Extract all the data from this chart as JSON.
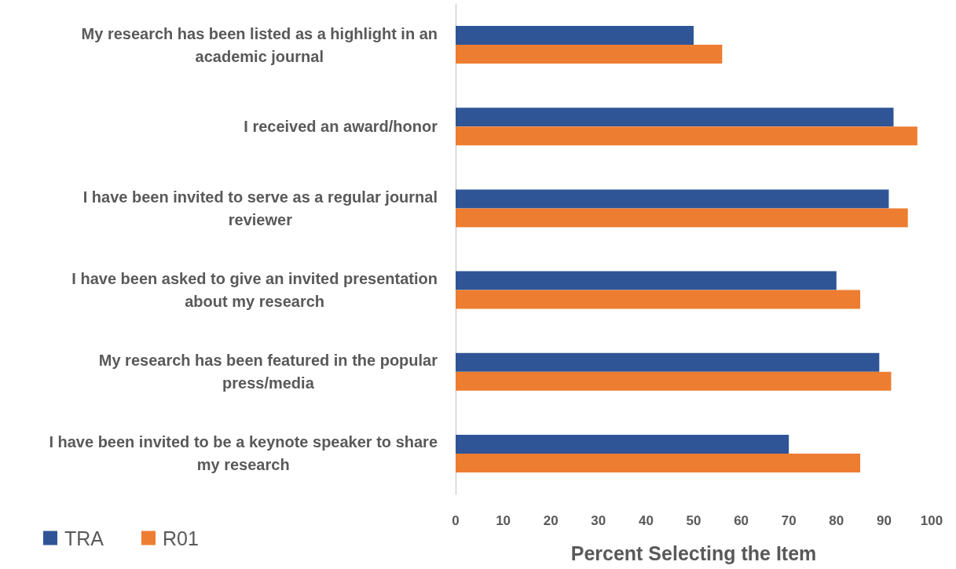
{
  "chart_data": {
    "type": "bar",
    "orientation": "horizontal",
    "xlabel": "Percent Selecting the Item",
    "categories": [
      "My research has been listed as a highlight in an academic journal",
      "I received an award/honor",
      "I have been invited to serve as a regular journal reviewer",
      "I have been asked to give an invited presentation about my research",
      "My research has been featured in the popular press/media",
      "I have been invited to be a keynote speaker to share my research"
    ],
    "series": [
      {
        "name": "TRA",
        "color": "#2f5597",
        "values": [
          50,
          92,
          91,
          80,
          89,
          70
        ]
      },
      {
        "name": "R01",
        "color": "#ed7d31",
        "values": [
          56,
          97,
          95,
          85,
          91.5,
          85
        ]
      }
    ],
    "xlim": [
      0,
      100
    ],
    "xticks": [
      0,
      10,
      20,
      30,
      40,
      50,
      60,
      70,
      80,
      90,
      100
    ],
    "legend": "bottom left"
  }
}
